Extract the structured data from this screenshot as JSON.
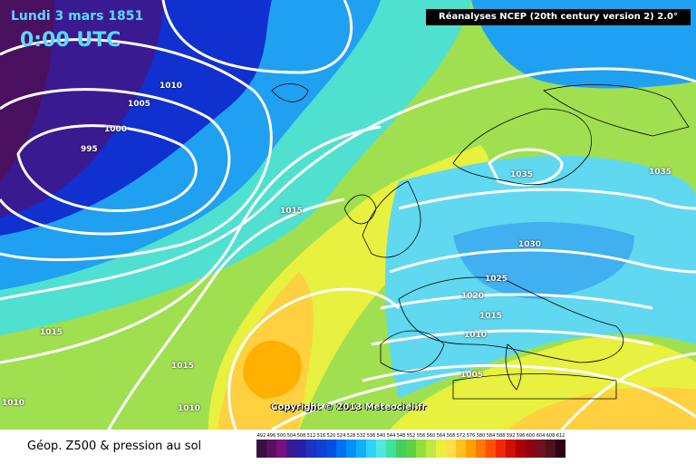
{
  "header": {
    "date": "Lundi 3 mars 1851",
    "time": "0:00 UTC",
    "title": "Réanalyses NCEP (20th century version 2) 2.0°"
  },
  "copyright": "Copyright © 2013 Meteociel.fr",
  "footer": {
    "label": "Géop. Z500 & pression au sol"
  },
  "isobar_labels": [
    {
      "text": "1010"
    },
    {
      "text": "1005"
    },
    {
      "text": "1000"
    },
    {
      "text": "995"
    },
    {
      "text": "1015"
    },
    {
      "text": "1035"
    },
    {
      "text": "1035"
    },
    {
      "text": "1030"
    },
    {
      "text": "1025"
    },
    {
      "text": "1020"
    },
    {
      "text": "1015"
    },
    {
      "text": "1010"
    },
    {
      "text": "1015"
    },
    {
      "text": "1015"
    },
    {
      "text": "1005"
    },
    {
      "text": "1010"
    },
    {
      "text": "1010"
    }
  ],
  "scale": {
    "values": [
      "492",
      "496",
      "500",
      "504",
      "508",
      "512",
      "516",
      "520",
      "524",
      "528",
      "532",
      "536",
      "540",
      "544",
      "548",
      "552",
      "556",
      "560",
      "564",
      "568",
      "572",
      "576",
      "580",
      "584",
      "588",
      "592",
      "596",
      "600",
      "604",
      "608",
      "612"
    ],
    "colors": [
      "#3a1040",
      "#5a1060",
      "#7a1080",
      "#3a1a90",
      "#2a20a8",
      "#2030c0",
      "#1040d0",
      "#0050e0",
      "#0070f0",
      "#0090ff",
      "#10b0ff",
      "#30d0ff",
      "#50e8e0",
      "#40e0a0",
      "#40d060",
      "#60d040",
      "#90e040",
      "#c0e840",
      "#e8f040",
      "#ffe040",
      "#ffc020",
      "#ffa000",
      "#ff7800",
      "#ff5000",
      "#f02800",
      "#d01000",
      "#b00000",
      "#900010",
      "#701020",
      "#501020",
      "#300010"
    ]
  }
}
